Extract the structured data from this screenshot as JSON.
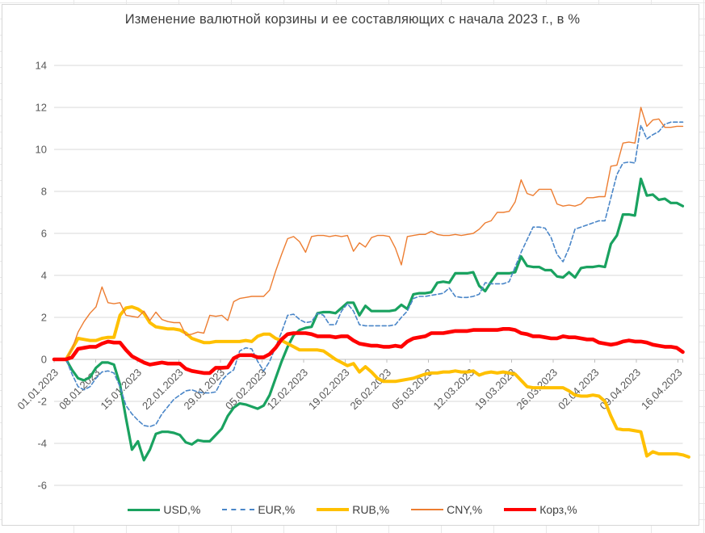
{
  "title": "Изменение валютной корзины и ее составляющих с начала 2023 г., в %",
  "chart_data": {
    "type": "line",
    "x_label_kind": "dates (daily points, weekly tick labels)",
    "x_tick_labels": [
      "01.01.2023",
      "08.01.2023",
      "15.01.2023",
      "22.01.2023",
      "29.01.2023",
      "05.02.2023",
      "12.02.2023",
      "19.02.2023",
      "26.02.2023",
      "05.03.2023",
      "12.03.2023",
      "19.03.2023",
      "26.03.2023",
      "02.04.2023",
      "09.04.2023",
      "16.04.2023"
    ],
    "x_tick_indices": [
      0,
      7,
      14,
      21,
      28,
      35,
      42,
      49,
      56,
      63,
      70,
      77,
      84,
      91,
      98,
      105
    ],
    "n_points": 106,
    "ylim": [
      -6,
      14
    ],
    "y_tick_step": 2,
    "grid": true,
    "legend_position": "bottom",
    "axis_text_color": "#595959",
    "grid_color": "#d9d9d9",
    "axis_line_color": "#bfbfbf",
    "series": [
      {
        "name": "USD,%",
        "color": "#1aa260",
        "dash": "solid",
        "width": 3.2,
        "values": [
          0,
          0,
          0,
          -0.5,
          -0.9,
          -1.0,
          -0.85,
          -0.4,
          -0.15,
          -0.15,
          -0.25,
          -1.2,
          -2.8,
          -4.3,
          -3.9,
          -4.8,
          -4.3,
          -3.55,
          -3.45,
          -3.45,
          -3.5,
          -3.6,
          -3.95,
          -4.05,
          -3.85,
          -3.9,
          -3.9,
          -3.6,
          -3.3,
          -2.7,
          -2.3,
          -2.1,
          -2.15,
          -2.25,
          -2.35,
          -2.2,
          -1.7,
          -0.9,
          -0.1,
          0.6,
          1.15,
          1.4,
          1.5,
          1.55,
          2.2,
          2.25,
          2.25,
          2.2,
          2.45,
          2.7,
          2.7,
          2.1,
          2.55,
          2.3,
          2.3,
          2.3,
          2.3,
          2.35,
          2.6,
          2.4,
          3.1,
          3.15,
          3.15,
          3.2,
          3.65,
          3.7,
          3.65,
          4.1,
          4.1,
          4.1,
          4.15,
          3.5,
          3.25,
          3.7,
          4.1,
          4.1,
          4.1,
          4.15,
          4.9,
          4.45,
          4.4,
          4.4,
          4.25,
          4.25,
          3.95,
          3.9,
          4.15,
          3.9,
          4.35,
          4.4,
          4.4,
          4.45,
          4.4,
          5.5,
          5.9,
          6.9,
          6.9,
          6.85,
          8.6,
          7.8,
          7.85,
          7.6,
          7.65,
          7.45,
          7.45,
          7.3
        ]
      },
      {
        "name": "EUR,%",
        "color": "#4a86c8",
        "dash": "dashed",
        "width": 1.6,
        "values": [
          0,
          0,
          0,
          -0.7,
          -1.3,
          -1.45,
          -1.3,
          -0.9,
          -0.6,
          -0.55,
          -0.65,
          -1.3,
          -2.2,
          -2.6,
          -2.9,
          -3.15,
          -3.2,
          -3.1,
          -2.6,
          -2.25,
          -1.9,
          -1.7,
          -1.5,
          -1.45,
          -1.55,
          -1.6,
          -1.6,
          -1.55,
          -1.0,
          -0.7,
          -0.5,
          0.4,
          0.55,
          0.5,
          -0.1,
          -0.55,
          -0.1,
          0.6,
          1.3,
          2.1,
          2.15,
          1.9,
          1.75,
          1.8,
          2.2,
          2.1,
          1.65,
          1.65,
          2.3,
          2.65,
          2.3,
          1.65,
          1.6,
          1.6,
          1.6,
          1.6,
          1.6,
          1.65,
          2.0,
          2.3,
          2.9,
          3.0,
          3.0,
          3.05,
          3.1,
          3.15,
          3.4,
          3.0,
          2.95,
          2.95,
          3.0,
          3.1,
          3.65,
          3.6,
          3.6,
          3.6,
          3.7,
          4.4,
          5.1,
          5.7,
          6.3,
          6.3,
          6.25,
          5.8,
          5.0,
          4.65,
          5.3,
          6.2,
          6.3,
          6.4,
          6.5,
          6.6,
          6.6,
          7.7,
          8.8,
          9.35,
          9.4,
          9.35,
          11.15,
          10.5,
          10.7,
          10.85,
          11.2,
          11.3,
          11.3,
          11.3
        ]
      },
      {
        "name": "RUB,%",
        "color": "#ffc000",
        "dash": "solid",
        "width": 4,
        "values": [
          0,
          0,
          0,
          0.5,
          1.0,
          0.95,
          0.9,
          0.9,
          1.0,
          1.05,
          1.05,
          2.1,
          2.45,
          2.5,
          2.4,
          2.2,
          1.75,
          1.55,
          1.5,
          1.45,
          1.45,
          1.4,
          1.25,
          1.0,
          0.9,
          0.8,
          0.8,
          0.85,
          0.85,
          0.85,
          0.85,
          0.85,
          0.9,
          0.85,
          1.1,
          1.2,
          1.2,
          1.0,
          0.9,
          0.75,
          0.6,
          0.45,
          0.45,
          0.45,
          0.45,
          0.4,
          0.2,
          0.0,
          -0.15,
          -0.3,
          -0.2,
          -0.6,
          -0.35,
          -0.6,
          -0.9,
          -1.05,
          -1.05,
          -1.05,
          -1.0,
          -0.95,
          -0.9,
          -0.8,
          -0.7,
          -0.65,
          -0.65,
          -0.6,
          -0.6,
          -0.55,
          -0.6,
          -0.6,
          -0.55,
          -0.75,
          -0.65,
          -0.6,
          -0.65,
          -0.6,
          -0.65,
          -0.7,
          -1.0,
          -1.3,
          -1.35,
          -1.35,
          -1.35,
          -1.35,
          -1.35,
          -1.35,
          -1.5,
          -1.7,
          -1.75,
          -1.75,
          -1.7,
          -1.75,
          -2.0,
          -2.7,
          -3.3,
          -3.35,
          -3.35,
          -3.4,
          -3.45,
          -4.6,
          -4.4,
          -4.5,
          -4.5,
          -4.5,
          -4.5,
          -4.55,
          -4.65
        ]
      },
      {
        "name": "CNY,%",
        "color": "#ed7d31",
        "dash": "solid",
        "width": 1.4,
        "values": [
          0,
          0,
          0,
          0.5,
          1.3,
          1.8,
          2.2,
          2.5,
          3.45,
          2.7,
          2.65,
          2.7,
          2.1,
          2.05,
          2.0,
          2.3,
          1.85,
          2.25,
          1.9,
          1.8,
          1.75,
          1.75,
          1.15,
          1.2,
          1.3,
          1.25,
          2.1,
          2.05,
          2.1,
          1.85,
          2.75,
          2.9,
          2.95,
          3.0,
          3.0,
          3.0,
          3.3,
          4.2,
          5.0,
          5.75,
          5.85,
          5.6,
          5.1,
          5.85,
          5.9,
          5.9,
          5.85,
          5.9,
          5.85,
          5.9,
          5.15,
          5.55,
          5.35,
          5.8,
          5.9,
          5.9,
          5.85,
          5.3,
          4.5,
          5.85,
          5.9,
          5.95,
          5.95,
          6.1,
          5.95,
          5.9,
          5.9,
          5.95,
          5.9,
          5.95,
          6.0,
          6.2,
          6.5,
          6.6,
          7.0,
          7.0,
          7.05,
          7.5,
          8.55,
          7.9,
          7.8,
          8.1,
          8.1,
          8.1,
          7.4,
          7.3,
          7.35,
          7.3,
          7.4,
          7.7,
          7.7,
          7.75,
          7.75,
          9.2,
          9.25,
          10.3,
          10.35,
          10.3,
          12.0,
          11.1,
          11.4,
          11.45,
          11.05,
          11.05,
          11.1,
          11.1
        ]
      },
      {
        "name": "Корз,%",
        "color": "#ff0000",
        "dash": "solid",
        "width": 4.6,
        "values": [
          0,
          0,
          0,
          0.1,
          0.5,
          0.55,
          0.6,
          0.6,
          0.75,
          0.85,
          0.8,
          0.8,
          0.45,
          0.15,
          0.0,
          -0.15,
          -0.25,
          -0.2,
          -0.15,
          -0.2,
          -0.2,
          -0.2,
          -0.45,
          -0.55,
          -0.6,
          -0.65,
          -0.65,
          -0.4,
          -0.4,
          -0.38,
          0.05,
          0.2,
          0.2,
          0.2,
          0.1,
          0.1,
          0.25,
          0.55,
          0.95,
          1.2,
          1.25,
          1.25,
          1.25,
          1.2,
          1.1,
          1.1,
          1.1,
          1.05,
          1.1,
          1.1,
          0.9,
          0.75,
          0.7,
          0.65,
          0.65,
          0.6,
          0.6,
          0.65,
          0.6,
          0.85,
          1.0,
          1.05,
          1.1,
          1.25,
          1.25,
          1.25,
          1.3,
          1.35,
          1.35,
          1.35,
          1.4,
          1.4,
          1.4,
          1.4,
          1.4,
          1.45,
          1.45,
          1.4,
          1.25,
          1.2,
          1.1,
          1.1,
          1.05,
          1.0,
          1.0,
          1.1,
          1.05,
          1.05,
          1.0,
          0.95,
          0.95,
          0.8,
          0.75,
          0.7,
          0.75,
          0.85,
          0.9,
          0.85,
          0.85,
          0.8,
          0.7,
          0.65,
          0.6,
          0.6,
          0.55,
          0.35
        ]
      }
    ]
  }
}
